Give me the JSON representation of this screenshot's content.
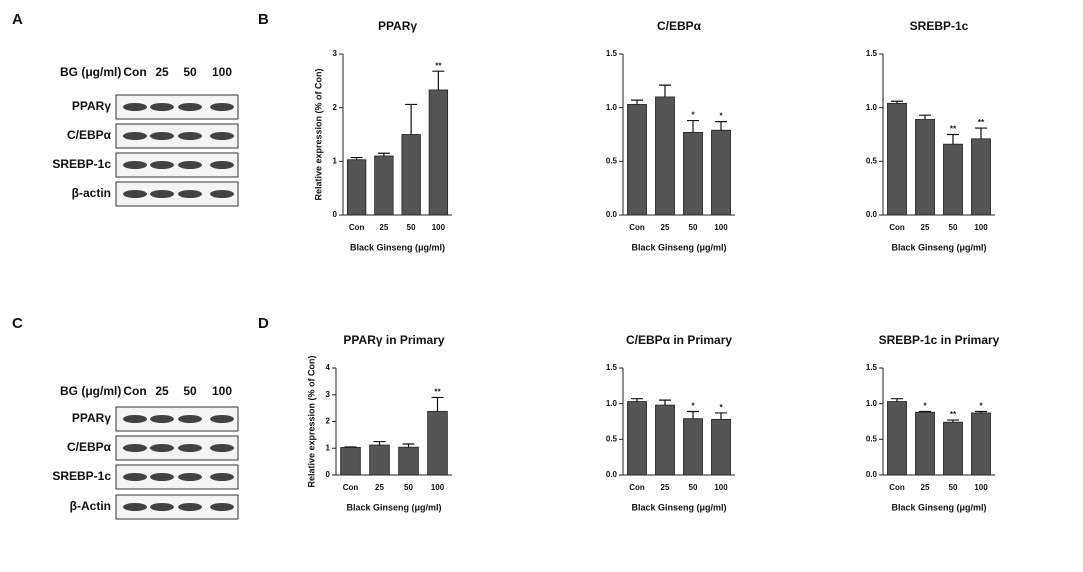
{
  "panels": [
    "A",
    "B",
    "C",
    "D"
  ],
  "blots": [
    {
      "header": "BG (μg/ml)",
      "lanes": [
        "Con",
        "25",
        "50",
        "100"
      ],
      "rows": [
        "PPARγ",
        "C/EBPα",
        "SREBP-1c",
        "β-actin"
      ]
    },
    {
      "header": "BG (μg/ml)",
      "lanes": [
        "Con",
        "25",
        "50",
        "100"
      ],
      "rows": [
        "PPARγ",
        "C/EBPα",
        "SREBP-1c",
        "β-Actin"
      ]
    }
  ],
  "chart_data": [
    {
      "type": "bar",
      "title": "PPARγ",
      "ylabel": "Relative expression (% of Con)",
      "xlabel": "Black Ginseng (μg/ml)",
      "categories": [
        "Con",
        "25",
        "50",
        "100"
      ],
      "values": [
        1.03,
        1.1,
        1.5,
        2.33
      ],
      "errors": [
        0.04,
        0.05,
        0.56,
        0.35
      ],
      "annotations": [
        null,
        null,
        null,
        "**"
      ],
      "color": "#555555",
      "ylim": [
        0,
        3
      ],
      "yticks": [
        0,
        1,
        2,
        3
      ]
    },
    {
      "type": "bar",
      "title": "C/EBPα",
      "xlabel": "Black Ginseng (μg/ml)",
      "categories": [
        "Con",
        "25",
        "50",
        "100"
      ],
      "values": [
        1.03,
        1.1,
        0.77,
        0.79
      ],
      "errors": [
        0.04,
        0.11,
        0.11,
        0.08
      ],
      "annotations": [
        null,
        null,
        "*",
        "*"
      ],
      "color": "#555555",
      "ylim": [
        0,
        1.5
      ],
      "yticks": [
        {
          "value": 0,
          "label": "0.0"
        },
        0.5,
        {
          "value": 1,
          "label": "1.0"
        },
        1.5
      ]
    },
    {
      "type": "bar",
      "title": "SREBP-1c",
      "xlabel": "Black Ginseng (μg/ml)",
      "categories": [
        "Con",
        "25",
        "50",
        "100"
      ],
      "values": [
        1.04,
        0.89,
        0.66,
        0.71
      ],
      "errors": [
        0.02,
        0.04,
        0.09,
        0.1
      ],
      "annotations": [
        null,
        null,
        "**",
        "**"
      ],
      "color": "#555555",
      "ylim": [
        0,
        1.5
      ],
      "yticks": [
        {
          "value": 0,
          "label": "0.0"
        },
        0.5,
        {
          "value": 1,
          "label": "1.0"
        },
        1.5
      ]
    },
    {
      "type": "bar",
      "title": "PPARγ in Primary",
      "ylabel": "Relative expression (% of Con)",
      "xlabel": "Black Ginseng (μg/ml)",
      "categories": [
        "Con",
        "25",
        "50",
        "100"
      ],
      "values": [
        1.03,
        1.12,
        1.04,
        2.38
      ],
      "errors": [
        0.02,
        0.13,
        0.12,
        0.52
      ],
      "annotations": [
        null,
        null,
        null,
        "**"
      ],
      "color": "#555555",
      "ylim": [
        0,
        4
      ],
      "yticks": [
        0,
        1,
        2,
        3,
        4
      ]
    },
    {
      "type": "bar",
      "title": "C/EBPα in Primary",
      "xlabel": "Black Ginseng (μg/ml)",
      "categories": [
        "Con",
        "25",
        "50",
        "100"
      ],
      "values": [
        1.03,
        0.98,
        0.79,
        0.78
      ],
      "errors": [
        0.04,
        0.07,
        0.1,
        0.09
      ],
      "annotations": [
        null,
        null,
        "*",
        "*"
      ],
      "color": "#555555",
      "ylim": [
        0,
        1.5
      ],
      "yticks": [
        {
          "value": 0,
          "label": "0.0"
        },
        0.5,
        {
          "value": 1,
          "label": "1.0"
        },
        1.5
      ]
    },
    {
      "type": "bar",
      "title": "SREBP-1c in Primary",
      "xlabel": "Black Ginseng (μg/ml)",
      "categories": [
        "Con",
        "25",
        "50",
        "100"
      ],
      "values": [
        1.03,
        0.88,
        0.74,
        0.87
      ],
      "errors": [
        0.04,
        0.01,
        0.03,
        0.02
      ],
      "annotations": [
        null,
        "*",
        "**",
        "*"
      ],
      "color": "#555555",
      "ylim": [
        0,
        1.5
      ],
      "yticks": [
        {
          "value": 0,
          "label": "0.0"
        },
        0.5,
        {
          "value": 1,
          "label": "1.0"
        },
        1.5
      ]
    }
  ]
}
